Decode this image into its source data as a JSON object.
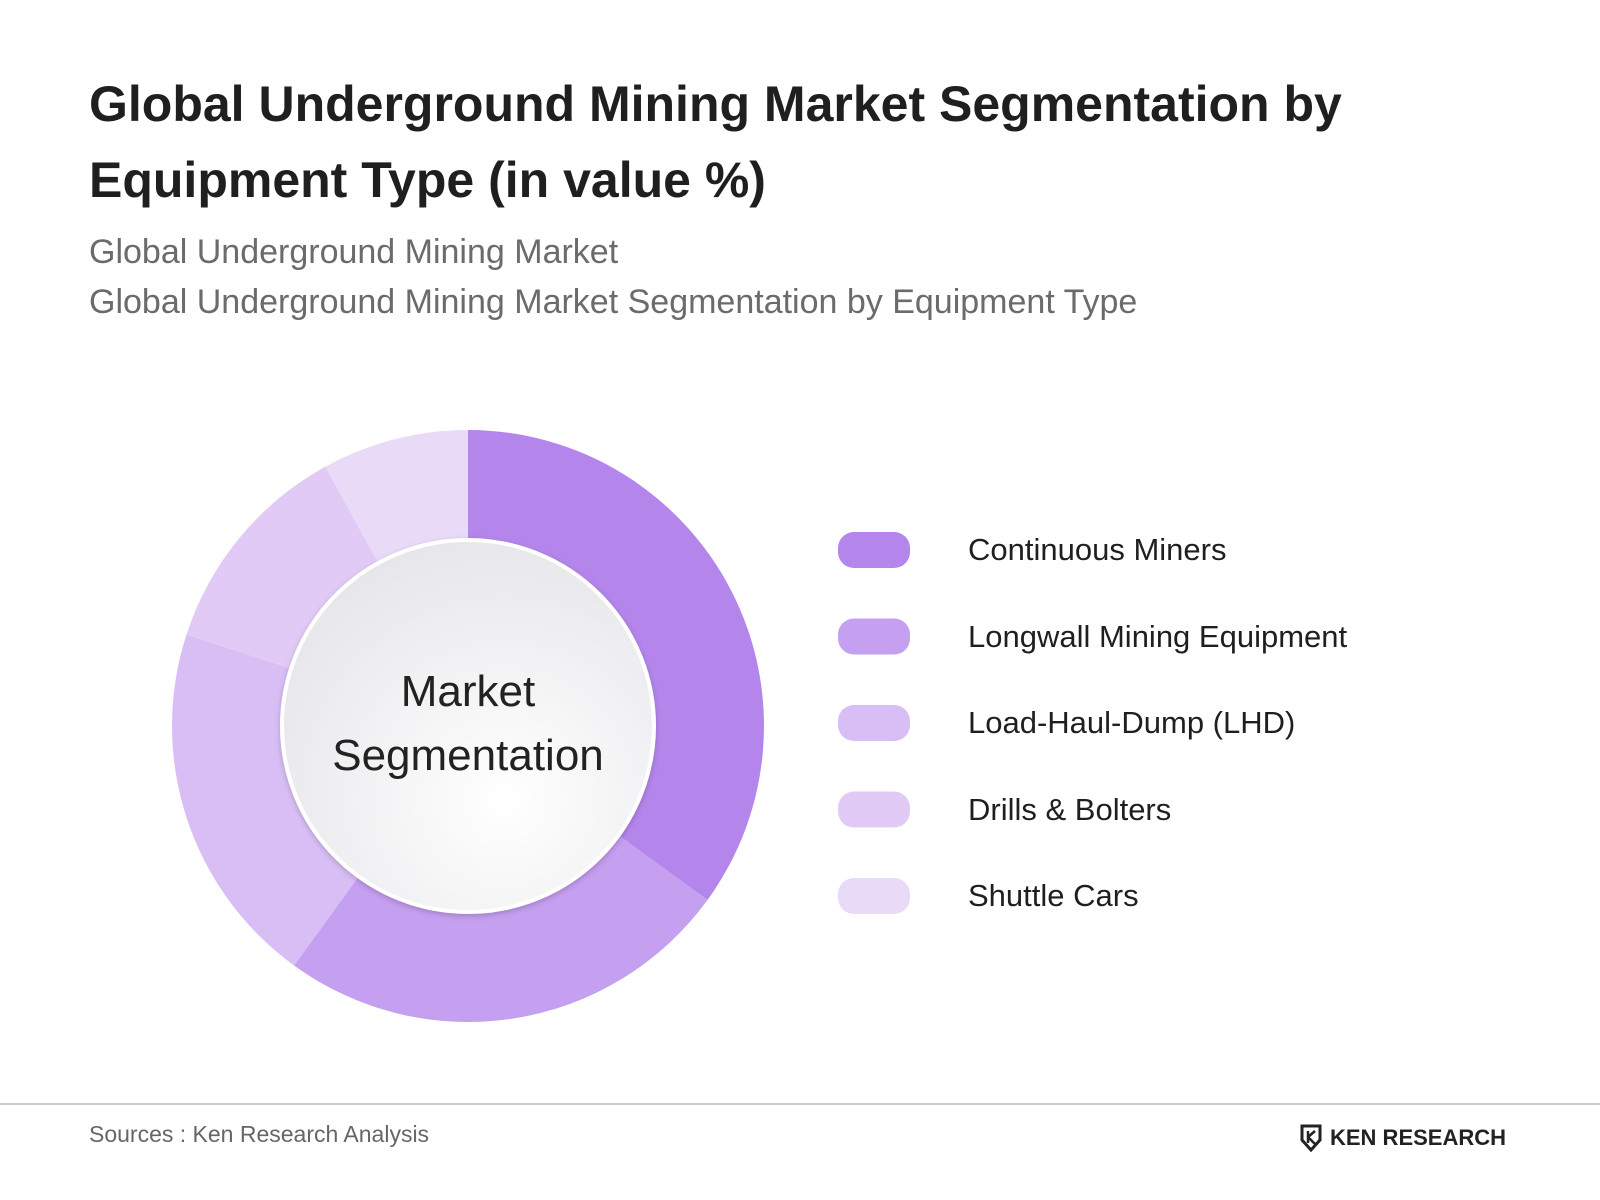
{
  "chart_data": {
    "type": "donut",
    "title": "Global Underground Mining Market Segmentation by Equipment Type (in value %)",
    "subtitle": [
      "Global Underground Mining Market",
      "Global Underground Mining Market Segmentation by Equipment Type"
    ],
    "center_label": "Market Segmentation",
    "categories": [
      "Continuous Miners",
      "Longwall Mining Equipment",
      "Load-Haul-Dump (LHD)",
      "Drills & Bolters",
      "Shuttle Cars"
    ],
    "values": [
      35,
      25,
      20,
      12,
      8
    ],
    "colors": [
      "#b486ec",
      "#c59ff0",
      "#d8bef5",
      "#e1cbf6",
      "#e9dbf8"
    ],
    "source": "Sources : Ken Research Analysis",
    "logo": "KEN RESEARCH"
  }
}
